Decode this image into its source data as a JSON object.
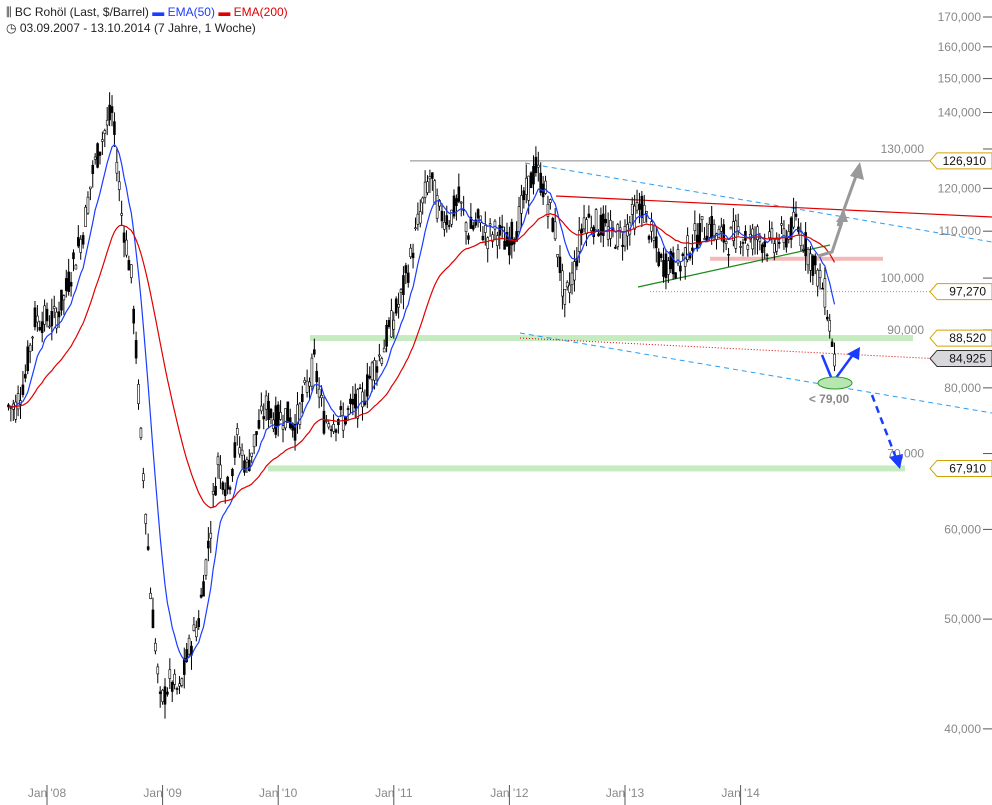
{
  "header": {
    "title": "BC Rohöl (Last, $/Barrel)",
    "legend_ema50": "EMA(50)",
    "legend_ema200": "EMA(200)",
    "period": "03.09.2007 - 13.10.2014 (7 Jahre, 1 Woche)"
  },
  "colors": {
    "price": "#000000",
    "ema50": "#1a3cff",
    "ema200": "#e00000",
    "support": "#b8e6b0",
    "label_border": "#d4a200"
  },
  "chart_data": {
    "type": "line",
    "title": "BC Rohöl (Last, $/Barrel)",
    "yscale": "log",
    "ylim": [
      38000,
      175000
    ],
    "y_ticks": [
      "170,000",
      "160,000",
      "150,000",
      "140,000",
      "130,000",
      "120,000",
      "110,000",
      "100,000",
      "90,000",
      "80,000",
      "70,000",
      "60,000",
      "50,000",
      "40,000"
    ],
    "y_tick_values": [
      170,
      160,
      150,
      140,
      130,
      120,
      110,
      100,
      90,
      80,
      70,
      60,
      50,
      40
    ],
    "x_ticks": [
      "Jan '08",
      "Jan '09",
      "Jan '10",
      "Jan '11",
      "Jan '12",
      "Jan '13",
      "Jan '14"
    ],
    "x_tick_years": [
      2008,
      2009,
      2010,
      2011,
      2012,
      2013,
      2014
    ],
    "start": "2007-09",
    "unit": "thousand (monthly close, approx.)",
    "series": [
      {
        "name": "BC Rohöl",
        "values": [
          77,
          82,
          92,
          92,
          92,
          96,
          103,
          110,
          124,
          133,
          140,
          114,
          100,
          72,
          53,
          42,
          44,
          43,
          47,
          50,
          58,
          69,
          65,
          72,
          68,
          73,
          77,
          75,
          76,
          74,
          79,
          84,
          75,
          75,
          75,
          77,
          78,
          83,
          86,
          91,
          96,
          104,
          114,
          123,
          114,
          113,
          117,
          110,
          112,
          109,
          110,
          107,
          111,
          119,
          125,
          119,
          110,
          95,
          102,
          113,
          112,
          111,
          109,
          109,
          113,
          116,
          109,
          103,
          103,
          103,
          107,
          110,
          111,
          109,
          108,
          110,
          108,
          109,
          107,
          108,
          109,
          112,
          107,
          102,
          97,
          85
        ]
      }
    ],
    "price_labels": [
      "126,910",
      "97,270",
      "88,520",
      "84,925",
      "67,910"
    ],
    "price_label_values": [
      126.91,
      97.27,
      88.52,
      84.925,
      67.91
    ],
    "annotation": "< 79,00"
  }
}
